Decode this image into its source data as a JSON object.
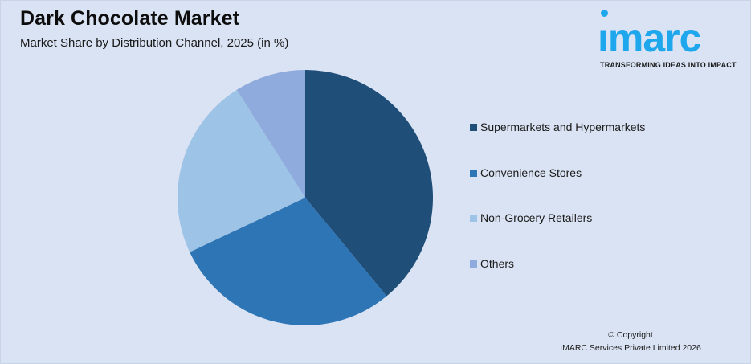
{
  "header": {
    "title": "Dark Chocolate Market",
    "subtitle": "Market Share by Distribution Channel, 2025 (in %)"
  },
  "logo": {
    "word": "ımarc",
    "tagline": "TRANSFORMING IDEAS INTO IMPACT",
    "color": "#1ea7ec"
  },
  "legend": {
    "items": [
      {
        "label": "Supermarkets and Hypermarkets",
        "color": "#1f4e79"
      },
      {
        "label": "Convenience Stores",
        "color": "#2e75b6"
      },
      {
        "label": "Non-Grocery Retailers",
        "color": "#9dc3e6"
      },
      {
        "label": "Others",
        "color": "#8faadc"
      }
    ]
  },
  "footer": {
    "copyright_line1": "© Copyright",
    "copyright_line2": "IMARC Services Private Limited 2026"
  },
  "chart_data": {
    "type": "pie",
    "title": "Dark Chocolate Market",
    "subtitle": "Market Share by Distribution Channel, 2025 (in %)",
    "categories": [
      "Supermarkets and Hypermarkets",
      "Convenience Stores",
      "Non-Grocery Retailers",
      "Others"
    ],
    "values": [
      39,
      29,
      23,
      9
    ],
    "colors": [
      "#1f4e79",
      "#2e75b6",
      "#9dc3e6",
      "#8faadc"
    ],
    "start_angle": "12 o'clock, clockwise",
    "data_labels": false,
    "legend_position": "right"
  }
}
